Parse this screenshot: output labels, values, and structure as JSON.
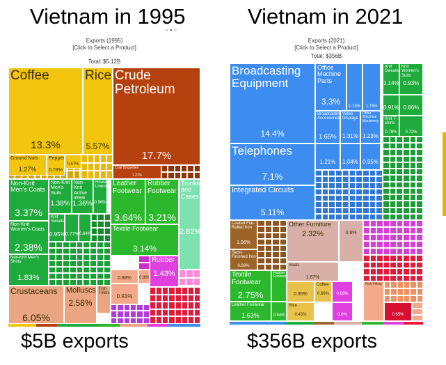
{
  "headings": {
    "left": "Vietnam in 1995",
    "right": "Vietnam in 2021"
  },
  "footers": {
    "left": "$5B exports",
    "right": "$356B exports"
  },
  "chart_data": [
    {
      "type": "treemap",
      "title": "Exports (1995)",
      "subtitle": "[Click to Select a Product]",
      "total_label": "Total: $5.12B",
      "items": [
        {
          "name": "Coffee",
          "value": "13.3%",
          "color": "#f2c50f"
        },
        {
          "name": "Rice",
          "value": "5.57%",
          "color": "#f2c50f"
        },
        {
          "name": "Crude Petroleum",
          "value": "17.7%",
          "color": "#b5420e"
        },
        {
          "name": "Ground Nuts",
          "value": "1.27%",
          "color": "#f2c50f"
        },
        {
          "name": "Pepper",
          "value": "0.78%",
          "color": "#f2c50f"
        },
        {
          "name": "",
          "value": "0.67%",
          "color": "#f2c50f"
        },
        {
          "name": "Coal Briquettes",
          "value": "1.27%",
          "color": "#b5420e"
        },
        {
          "name": "Non-Knit Men's Coats",
          "value": "3.37%",
          "color": "#1faa3c"
        },
        {
          "name": "Non-Knit Men's Suits",
          "value": "1.38%",
          "color": "#1faa3c"
        },
        {
          "name": "Non-Knit Active Wear",
          "value": "1.36%",
          "color": "#1faa3c"
        },
        {
          "name": "House Linens",
          "value": "0.96%",
          "color": "#1faa3c"
        },
        {
          "name": "Knit Sweaters",
          "value": "0.95%",
          "color": "#1faa3c"
        },
        {
          "name": "",
          "value": "0.77%",
          "color": "#1faa3c"
        },
        {
          "name": "",
          "value": "0.64%",
          "color": "#1faa3c"
        },
        {
          "name": "Non-Knit Women's Coats",
          "value": "2.38%",
          "color": "#1faa3c"
        },
        {
          "name": "Non-Knit Men's Shirts",
          "value": "1.83%",
          "color": "#1faa3c"
        },
        {
          "name": "Leather Footwear",
          "value": "3.64%",
          "color": "#2cb82c"
        },
        {
          "name": "Rubber Footwear",
          "value": "3.21%",
          "color": "#2cb82c"
        },
        {
          "name": "Trunks and Cases",
          "value": "2.82%",
          "color": "#7ee2b0"
        },
        {
          "name": "Textile Footwear",
          "value": "3.14%",
          "color": "#2cb82c"
        },
        {
          "name": "Rubber",
          "value": "1.43%",
          "color": "#e040e0"
        },
        {
          "name": "",
          "value": "0.91%",
          "color": "#f4a98a"
        },
        {
          "name": "",
          "value": "0.88%",
          "color": "#f4a98a"
        },
        {
          "name": "",
          "value": "0.86%",
          "color": "#f4a98a"
        },
        {
          "name": "Crustaceans",
          "value": "6.05%",
          "color": "#eba582"
        },
        {
          "name": "Molluscs",
          "value": "2.58%",
          "color": "#eba582"
        },
        {
          "name": "Fish Fillets",
          "value": "",
          "color": "#eba582"
        }
      ]
    },
    {
      "type": "treemap",
      "title": "Exports (2021)",
      "subtitle": "[Click to Select a Product]",
      "total_label": "Total: $356B",
      "items": [
        {
          "name": "Broadcasting Equipment",
          "value": "14.4%",
          "color": "#3d8df0"
        },
        {
          "name": "Office Machine Parts",
          "value": "3.3%",
          "color": "#3d8df0"
        },
        {
          "name": "",
          "value": "1.78%",
          "color": "#3d8df0"
        },
        {
          "name": "",
          "value": "1.75%",
          "color": "#3d8df0"
        },
        {
          "name": "Broadcasting Accessories",
          "value": "1.65%",
          "color": "#3d8df0"
        },
        {
          "name": "Video Displays",
          "value": "1.31%",
          "color": "#3d8df0"
        },
        {
          "name": "Other Electrical Machinery",
          "value": "1.23%",
          "color": "#3d8df0"
        },
        {
          "name": "",
          "value": "1.21%",
          "color": "#3d8df0"
        },
        {
          "name": "",
          "value": "1.04%",
          "color": "#3d8df0"
        },
        {
          "name": "",
          "value": "0.95%",
          "color": "#3d8df0"
        },
        {
          "name": "Telephones",
          "value": "7.1%",
          "color": "#3d8df0"
        },
        {
          "name": "Integrated Circuits",
          "value": "5.11%",
          "color": "#3d8df0"
        },
        {
          "name": "Knit Sweaters",
          "value": "1.14%",
          "color": "#1faa3c"
        },
        {
          "name": "Knit Women's Suits",
          "value": "0.93%",
          "color": "#1faa3c"
        },
        {
          "name": "",
          "value": "0.91%",
          "color": "#1faa3c"
        },
        {
          "name": "",
          "value": "0.86%",
          "color": "#1faa3c"
        },
        {
          "name": "Knit T-shirts",
          "value": "0.78%",
          "color": "#1faa3c"
        },
        {
          "name": "",
          "value": "0.72%",
          "color": "#1faa3c"
        },
        {
          "name": "Coated Flat-Rolled Iron",
          "value": "1.06%",
          "color": "#9b6428"
        },
        {
          "name": "Semi-Finished Iron",
          "value": "0.69%",
          "color": "#9b6428"
        },
        {
          "name": "Other Furniture",
          "value": "2.32%",
          "color": "#d9b0a8"
        },
        {
          "name": "Seats",
          "value": "1.67%",
          "color": "#d9b0a8"
        },
        {
          "name": "",
          "value": "0.8%",
          "color": "#d9b0a8"
        },
        {
          "name": "",
          "value": "0.95%",
          "color": "#e8c24a"
        },
        {
          "name": "Coffee",
          "value": "0.66%",
          "color": "#e8c24a"
        },
        {
          "name": "Rice",
          "value": "0.43%",
          "color": "#e8c24a"
        },
        {
          "name": "Textile Footwear",
          "value": "2.75%",
          "color": "#2cb82c"
        },
        {
          "name": "Rubber Footwear",
          "value": "",
          "color": "#2cb82c"
        },
        {
          "name": "",
          "value": "0.94%",
          "color": "#2cb82c"
        },
        {
          "name": "Leather Footwear",
          "value": "1.63%",
          "color": "#2cb82c"
        },
        {
          "name": "",
          "value": "0.69%",
          "color": "#e040e0"
        },
        {
          "name": "",
          "value": "0.6%",
          "color": "#e040e0"
        },
        {
          "name": "Fish Fillets",
          "value": "",
          "color": "#f4a98a"
        },
        {
          "name": "",
          "value": "0.65%",
          "color": "#d6102f"
        }
      ]
    }
  ]
}
